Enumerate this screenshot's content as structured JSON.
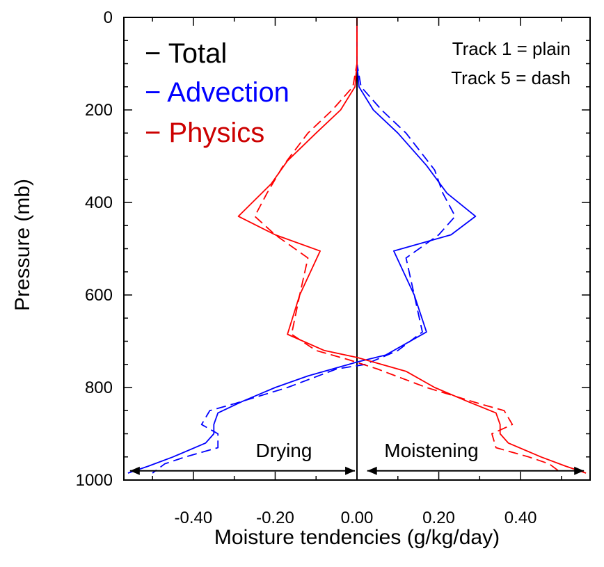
{
  "chart_data": {
    "type": "line",
    "title": "",
    "xlabel": "Moisture tendencies (g/kg/day)",
    "ylabel": "Pressure (mb)",
    "xlim": [
      -0.57,
      0.57
    ],
    "ylim": [
      1000,
      0
    ],
    "x_ticks": [
      -0.4,
      -0.2,
      0.0,
      0.2,
      0.4
    ],
    "x_tick_labels": [
      "-0.40",
      "-0.20",
      "0.00",
      "0.20",
      "0.40"
    ],
    "y_ticks": [
      0,
      200,
      400,
      600,
      800,
      1000
    ],
    "y_tick_labels": [
      "0",
      "200",
      "400",
      "600",
      "800",
      "1000"
    ],
    "grid": false,
    "legend": {
      "placement": "top-left",
      "entries": [
        {
          "label": "− Total",
          "color": "#000000"
        },
        {
          "label": "− Advection",
          "color": "#0000ff"
        },
        {
          "label": "− Physics",
          "color": "#cc0000"
        }
      ]
    },
    "note_lines": [
      "Track 1 = plain",
      "Track 5 = dash"
    ],
    "annotations": {
      "left_label": "Drying",
      "right_label": "Moistening",
      "left_arrow_x": [
        -0.005,
        -0.555
      ],
      "right_arrow_x": [
        0.025,
        0.555
      ],
      "arrow_y": 980
    },
    "series": [
      {
        "name": "Total",
        "track": 1,
        "style": "solid",
        "color": "#000000",
        "points": [
          [
            0,
            0
          ],
          [
            0,
            1000
          ]
        ]
      },
      {
        "name": "Total",
        "track": 5,
        "style": "dash",
        "color": "#000000",
        "points": [
          [
            0,
            0
          ],
          [
            0,
            1000
          ]
        ]
      },
      {
        "name": "Advection",
        "track": 1,
        "style": "solid",
        "color": "#0000ff",
        "points": [
          [
            0.0,
            0
          ],
          [
            0.0,
            100
          ],
          [
            0.005,
            150
          ],
          [
            0.04,
            200
          ],
          [
            0.1,
            250
          ],
          [
            0.17,
            320
          ],
          [
            0.22,
            380
          ],
          [
            0.29,
            430
          ],
          [
            0.23,
            470
          ],
          [
            0.09,
            505
          ],
          [
            0.14,
            600
          ],
          [
            0.17,
            680
          ],
          [
            0.07,
            730
          ],
          [
            0.0,
            745
          ],
          [
            -0.12,
            775
          ],
          [
            -0.2,
            800
          ],
          [
            -0.28,
            830
          ],
          [
            -0.34,
            855
          ],
          [
            -0.35,
            880
          ],
          [
            -0.35,
            900
          ],
          [
            -0.37,
            920
          ],
          [
            -0.45,
            950
          ],
          [
            -0.51,
            970
          ],
          [
            -0.56,
            985
          ]
        ]
      },
      {
        "name": "Advection",
        "track": 5,
        "style": "dash",
        "color": "#0000ff",
        "points": [
          [
            0.0,
            0
          ],
          [
            0.0,
            100
          ],
          [
            0.01,
            150
          ],
          [
            0.06,
            200
          ],
          [
            0.12,
            250
          ],
          [
            0.19,
            330
          ],
          [
            0.21,
            380
          ],
          [
            0.24,
            430
          ],
          [
            0.2,
            470
          ],
          [
            0.12,
            520
          ],
          [
            0.14,
            600
          ],
          [
            0.16,
            680
          ],
          [
            0.1,
            720
          ],
          [
            0.02,
            750
          ],
          [
            -0.05,
            760
          ],
          [
            -0.17,
            800
          ],
          [
            -0.3,
            835
          ],
          [
            -0.36,
            850
          ],
          [
            -0.38,
            880
          ],
          [
            -0.34,
            900
          ],
          [
            -0.34,
            930
          ],
          [
            -0.42,
            950
          ],
          [
            -0.47,
            965
          ],
          [
            -0.5,
            985
          ]
        ]
      },
      {
        "name": "Physics",
        "track": 1,
        "style": "solid",
        "color": "#ff0000",
        "points": [
          [
            0.0,
            0
          ],
          [
            0.0,
            100
          ],
          [
            -0.005,
            150
          ],
          [
            -0.04,
            200
          ],
          [
            -0.1,
            250
          ],
          [
            -0.17,
            310
          ],
          [
            -0.21,
            360
          ],
          [
            -0.29,
            430
          ],
          [
            -0.2,
            470
          ],
          [
            -0.09,
            505
          ],
          [
            -0.14,
            600
          ],
          [
            -0.17,
            685
          ],
          [
            -0.08,
            720
          ],
          [
            0.0,
            735
          ],
          [
            0.12,
            765
          ],
          [
            0.19,
            800
          ],
          [
            0.27,
            830
          ],
          [
            0.34,
            855
          ],
          [
            0.35,
            880
          ],
          [
            0.35,
            900
          ],
          [
            0.37,
            920
          ],
          [
            0.45,
            950
          ],
          [
            0.51,
            970
          ],
          [
            0.56,
            985
          ]
        ]
      },
      {
        "name": "Physics",
        "track": 5,
        "style": "dash",
        "color": "#ff0000",
        "points": [
          [
            0.0,
            0
          ],
          [
            0.0,
            100
          ],
          [
            -0.01,
            150
          ],
          [
            -0.06,
            200
          ],
          [
            -0.12,
            250
          ],
          [
            -0.18,
            320
          ],
          [
            -0.22,
            380
          ],
          [
            -0.25,
            430
          ],
          [
            -0.2,
            470
          ],
          [
            -0.12,
            520
          ],
          [
            -0.14,
            600
          ],
          [
            -0.16,
            685
          ],
          [
            -0.1,
            720
          ],
          [
            -0.02,
            740
          ],
          [
            0.05,
            760
          ],
          [
            0.17,
            800
          ],
          [
            0.3,
            835
          ],
          [
            0.36,
            850
          ],
          [
            0.38,
            880
          ],
          [
            0.33,
            900
          ],
          [
            0.34,
            930
          ],
          [
            0.42,
            950
          ],
          [
            0.47,
            965
          ],
          [
            0.5,
            985
          ]
        ]
      }
    ]
  }
}
